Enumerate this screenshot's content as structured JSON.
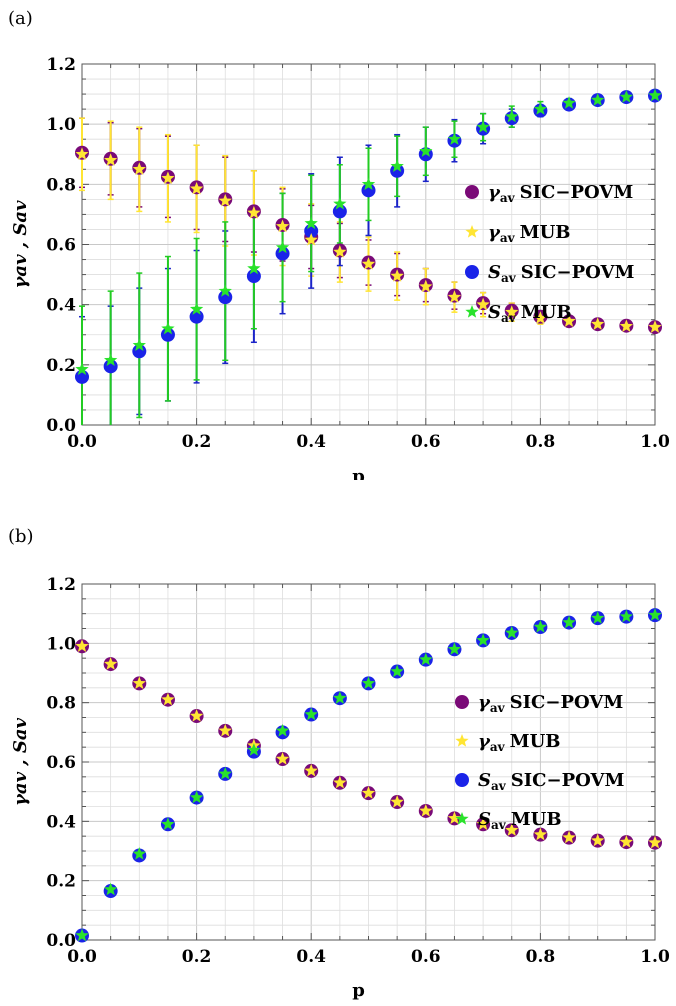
{
  "panel_labels": [
    "(a)",
    "(b)"
  ],
  "colors": {
    "gamma_sic": "#7a0a77",
    "gamma_mub": "#ffe533",
    "s_sic": "#1a23e8",
    "s_mub": "#29e22b",
    "gamma_sic_err": "#7a0a77",
    "gamma_mub_err": "#ffe533",
    "s_sic_err": "#1a23c8",
    "s_mub_err": "#22cc22"
  },
  "legend": [
    {
      "sym": "γ",
      "sub": "av",
      "text": "SIC−POVM",
      "marker": "circle",
      "color_key": "gamma_sic"
    },
    {
      "sym": "γ",
      "sub": "av",
      "text": "MUB",
      "marker": "star",
      "color_key": "gamma_mub"
    },
    {
      "sym": "S",
      "sub": "av",
      "text": "SIC−POVM",
      "marker": "circle",
      "color_key": "s_sic"
    },
    {
      "sym": "S",
      "sub": "av",
      "text": "MUB",
      "marker": "star",
      "color_key": "s_mub"
    }
  ],
  "chart_data": [
    {
      "type": "scatter",
      "panel": "(a)",
      "xlabel": "p",
      "ylabel": "γav , Sav",
      "xlim": [
        0,
        1
      ],
      "ylim": [
        0,
        1.2
      ],
      "xticks": [
        "0.0",
        "0.2",
        "0.4",
        "0.6",
        "0.8",
        "1.0"
      ],
      "yticks": [
        "0.0",
        "0.2",
        "0.4",
        "0.6",
        "0.8",
        "1.0",
        "1.2"
      ],
      "grid": true,
      "legend_position": "right",
      "x": [
        0.0,
        0.05,
        0.1,
        0.15,
        0.2,
        0.25,
        0.3,
        0.35,
        0.4,
        0.45,
        0.5,
        0.55,
        0.6,
        0.65,
        0.7,
        0.75,
        0.8,
        0.85,
        0.9,
        0.95,
        1.0
      ],
      "series": [
        {
          "key": "gamma_sic",
          "marker": "circle",
          "values": [
            0.905,
            0.885,
            0.855,
            0.825,
            0.79,
            0.75,
            0.71,
            0.665,
            0.625,
            0.58,
            0.54,
            0.5,
            0.465,
            0.43,
            0.405,
            0.38,
            0.36,
            0.345,
            0.335,
            0.33,
            0.325
          ],
          "err": [
            0.115,
            0.12,
            0.13,
            0.135,
            0.14,
            0.14,
            0.135,
            0.12,
            0.105,
            0.09,
            0.075,
            0.07,
            0.055,
            0.045,
            0.035,
            0.025,
            0.02,
            0.015,
            0.01,
            0.005,
            0.005
          ]
        },
        {
          "key": "gamma_mub",
          "marker": "star",
          "values": [
            0.9,
            0.88,
            0.85,
            0.82,
            0.785,
            0.745,
            0.705,
            0.66,
            0.615,
            0.575,
            0.535,
            0.495,
            0.46,
            0.425,
            0.4,
            0.375,
            0.355,
            0.345,
            0.335,
            0.328,
            0.325
          ],
          "err": [
            0.12,
            0.13,
            0.14,
            0.145,
            0.145,
            0.15,
            0.14,
            0.13,
            0.12,
            0.1,
            0.09,
            0.08,
            0.06,
            0.05,
            0.04,
            0.03,
            0.02,
            0.015,
            0.01,
            0.005,
            0.005
          ]
        },
        {
          "key": "s_sic",
          "marker": "circle",
          "values": [
            0.16,
            0.195,
            0.245,
            0.3,
            0.36,
            0.425,
            0.495,
            0.57,
            0.645,
            0.71,
            0.78,
            0.845,
            0.9,
            0.945,
            0.985,
            1.02,
            1.045,
            1.065,
            1.08,
            1.09,
            1.095
          ],
          "err": [
            0.2,
            0.2,
            0.21,
            0.22,
            0.22,
            0.22,
            0.22,
            0.2,
            0.19,
            0.18,
            0.15,
            0.12,
            0.09,
            0.07,
            0.05,
            0.03,
            0.02,
            0.015,
            0.01,
            0.005,
            0.005
          ]
        },
        {
          "key": "s_mub",
          "marker": "star",
          "values": [
            0.185,
            0.215,
            0.265,
            0.32,
            0.385,
            0.445,
            0.52,
            0.59,
            0.67,
            0.735,
            0.8,
            0.86,
            0.91,
            0.95,
            0.99,
            1.025,
            1.05,
            1.07,
            1.08,
            1.09,
            1.095
          ],
          "err": [
            0.21,
            0.23,
            0.24,
            0.24,
            0.235,
            0.23,
            0.2,
            0.18,
            0.16,
            0.13,
            0.12,
            0.1,
            0.08,
            0.06,
            0.045,
            0.035,
            0.025,
            0.015,
            0.01,
            0.005,
            0.005
          ]
        }
      ]
    },
    {
      "type": "scatter",
      "panel": "(b)",
      "xlabel": "p",
      "ylabel": "γav , Sav",
      "xlim": [
        0,
        1
      ],
      "ylim": [
        0,
        1.2
      ],
      "xticks": [
        "0.0",
        "0.2",
        "0.4",
        "0.6",
        "0.8",
        "1.0"
      ],
      "yticks": [
        "0.0",
        "0.2",
        "0.4",
        "0.6",
        "0.8",
        "1.0",
        "1.2"
      ],
      "grid": true,
      "legend_position": "right",
      "x": [
        0.0,
        0.05,
        0.1,
        0.15,
        0.2,
        0.25,
        0.3,
        0.35,
        0.4,
        0.45,
        0.5,
        0.55,
        0.6,
        0.65,
        0.7,
        0.75,
        0.8,
        0.85,
        0.9,
        0.95,
        1.0
      ],
      "series": [
        {
          "key": "gamma_sic",
          "marker": "circle",
          "values": [
            0.99,
            0.93,
            0.865,
            0.81,
            0.755,
            0.705,
            0.655,
            0.61,
            0.57,
            0.53,
            0.495,
            0.465,
            0.435,
            0.41,
            0.39,
            0.37,
            0.355,
            0.345,
            0.335,
            0.33,
            0.328
          ]
        },
        {
          "key": "gamma_mub",
          "marker": "star",
          "values": [
            0.99,
            0.93,
            0.865,
            0.81,
            0.755,
            0.705,
            0.655,
            0.61,
            0.57,
            0.53,
            0.495,
            0.465,
            0.435,
            0.41,
            0.39,
            0.37,
            0.355,
            0.345,
            0.335,
            0.33,
            0.328
          ]
        },
        {
          "key": "s_sic",
          "marker": "circle",
          "values": [
            0.015,
            0.165,
            0.285,
            0.39,
            0.48,
            0.56,
            0.635,
            0.7,
            0.76,
            0.815,
            0.865,
            0.905,
            0.945,
            0.98,
            1.01,
            1.035,
            1.055,
            1.07,
            1.085,
            1.09,
            1.095
          ]
        },
        {
          "key": "s_mub",
          "marker": "star",
          "values": [
            0.015,
            0.17,
            0.29,
            0.39,
            0.48,
            0.56,
            0.64,
            0.705,
            0.76,
            0.815,
            0.865,
            0.905,
            0.945,
            0.98,
            1.01,
            1.035,
            1.055,
            1.07,
            1.085,
            1.09,
            1.095
          ]
        }
      ]
    }
  ]
}
